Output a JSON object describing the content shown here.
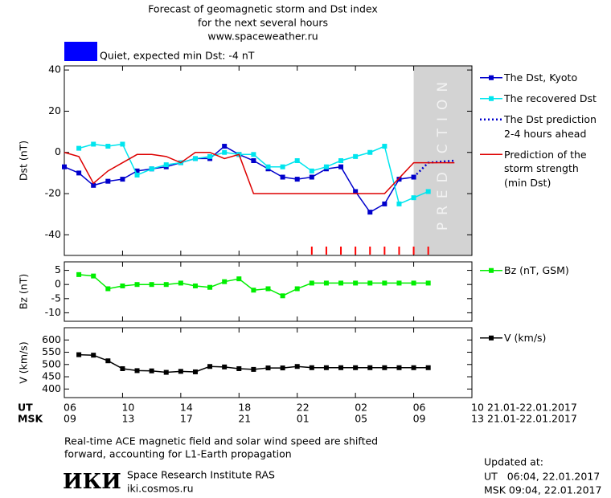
{
  "header": {
    "title_lines": [
      "Forecast of geomagnetic storm and Dst index",
      "for the next several hours",
      "www.spaceweather.ru"
    ]
  },
  "status": {
    "label": "Quiet, expected min Dst: -4 nT",
    "color": "#0000ff"
  },
  "chart_data": [
    {
      "type": "line",
      "ylabel": "Dst (nT)",
      "ylim": [
        -50,
        42
      ],
      "yticks": [
        -40,
        -20,
        0,
        20,
        40
      ],
      "grid": false,
      "shaded_region": {
        "label": "PREDICTION",
        "x": [
          24,
          28
        ],
        "color": "#d3d3d3"
      },
      "alert_marks": {
        "x": [
          17,
          18,
          19,
          20,
          21,
          22,
          23,
          24,
          25
        ],
        "color": "#ff0000"
      },
      "series": [
        {
          "name": "The Dst, Kyoto",
          "color": "#0000cc",
          "marker": "square",
          "dash": "solid",
          "x": [
            0,
            1,
            2,
            3,
            4,
            5,
            6,
            7,
            8,
            9,
            10,
            11,
            12,
            13,
            14,
            15,
            16,
            17,
            18,
            19,
            20,
            21,
            22,
            23,
            24
          ],
          "values": [
            -7,
            -10,
            -16,
            -14,
            -13,
            -9,
            -8,
            -7,
            -5,
            -3,
            -3,
            3,
            -1,
            -4,
            -8,
            -12,
            -13,
            -12,
            -8,
            -7,
            -19,
            -29,
            -25,
            -13,
            -12
          ]
        },
        {
          "name": "The recovered Dst",
          "color": "#00e5ee",
          "marker": "square",
          "dash": "solid",
          "x": [
            1,
            2,
            3,
            4,
            5,
            6,
            7,
            8,
            9,
            10,
            11,
            12,
            13,
            14,
            15,
            16,
            17,
            18,
            19,
            20,
            21,
            22,
            23,
            24,
            25
          ],
          "values": [
            2,
            4,
            3,
            4,
            -11,
            -8,
            -6,
            -5,
            -3,
            -2,
            0,
            -1,
            -1,
            -7,
            -7,
            -4,
            -9,
            -7,
            -4,
            -2,
            0,
            3,
            -25,
            -22,
            -19
          ]
        },
        {
          "name": "The Dst prediction\n2-4 hours ahead",
          "color": "#0000cc",
          "marker": "none",
          "dash": "dotted",
          "x": [
            24,
            25,
            26.8
          ],
          "values": [
            -12,
            -5,
            -4
          ]
        },
        {
          "name": "Prediction of the\nstorm strength\n(min Dst)",
          "color": "#dd0000",
          "marker": "none",
          "dash": "solid",
          "x": [
            0,
            1,
            2,
            3,
            4,
            5,
            6,
            7,
            8,
            9,
            10,
            11,
            12,
            13,
            22,
            24,
            26.8
          ],
          "values": [
            0,
            -2,
            -15,
            -9,
            -5,
            -1,
            -1,
            -2,
            -5,
            0,
            0,
            -3,
            -1,
            -20,
            -20,
            -5,
            -5
          ]
        }
      ]
    },
    {
      "type": "line",
      "ylabel": "Bz (nT)",
      "ylim": [
        -13,
        8
      ],
      "yticks": [
        -10,
        -5,
        0,
        5
      ],
      "grid": false,
      "series": [
        {
          "name": "Bz (nT, GSM)",
          "color": "#00ee00",
          "marker": "square",
          "dash": "solid",
          "x": [
            1,
            2,
            3,
            4,
            5,
            6,
            7,
            8,
            9,
            10,
            11,
            12,
            13,
            14,
            15,
            16,
            17,
            18,
            19,
            20,
            21,
            22,
            23,
            24,
            25
          ],
          "values": [
            3.5,
            3,
            -1.5,
            -0.5,
            0,
            0,
            0,
            0.5,
            -0.5,
            -1,
            1,
            2,
            -2,
            -1.5,
            -4,
            -1.5,
            0.5,
            0.5,
            0.5,
            0.5,
            0.5,
            0.5,
            0.5,
            0.5,
            0.5
          ]
        }
      ]
    },
    {
      "type": "line",
      "ylabel": "V (km/s)",
      "ylim": [
        365,
        650
      ],
      "yticks": [
        400,
        450,
        500,
        550,
        600
      ],
      "grid": false,
      "xlim": [
        0,
        28
      ],
      "xticks": [
        {
          "value": 0,
          "label": "06"
        },
        {
          "value": 4,
          "label": "10"
        },
        {
          "value": 8,
          "label": "14"
        },
        {
          "value": 12,
          "label": "18"
        },
        {
          "value": 16,
          "label": "22"
        },
        {
          "value": 20,
          "label": "02"
        },
        {
          "value": 24,
          "label": "06"
        },
        {
          "value": 28,
          "label": "10"
        }
      ],
      "xticks_msk": [
        {
          "value": 0,
          "label": "09"
        },
        {
          "value": 4,
          "label": "13"
        },
        {
          "value": 8,
          "label": "17"
        },
        {
          "value": 12,
          "label": "21"
        },
        {
          "value": 16,
          "label": "01"
        },
        {
          "value": 20,
          "label": "05"
        },
        {
          "value": 24,
          "label": "09"
        },
        {
          "value": 28,
          "label": "13"
        }
      ],
      "x_row_labels": [
        "UT",
        "MSK"
      ],
      "x_row_dates": [
        "21.01-22.01.2017",
        "21.01-22.01.2017"
      ],
      "series": [
        {
          "name": "V (km/s)",
          "color": "#000000",
          "marker": "square",
          "dash": "solid",
          "x": [
            1,
            2,
            3,
            4,
            5,
            6,
            7,
            8,
            9,
            10,
            11,
            12,
            13,
            14,
            15,
            16,
            17,
            18,
            19,
            20,
            21,
            22,
            23,
            24,
            25
          ],
          "values": [
            540,
            538,
            515,
            483,
            475,
            474,
            468,
            472,
            470,
            492,
            490,
            483,
            480,
            486,
            486,
            492,
            487,
            487,
            487,
            487,
            487,
            487,
            487,
            487,
            487
          ]
        }
      ]
    }
  ],
  "footer": {
    "note_lines": [
      "Real-time ACE magnetic field and solar wind speed are shifted",
      "forward, accounting for L1-Earth propagation"
    ],
    "logo": "ИКИ",
    "institute": "Space Research Institute RAS",
    "url": "iki.cosmos.ru",
    "updated_title": "Updated at:",
    "updated_lines": [
      "UT   06:04, 22.01.2017",
      "MSK 09:04, 22.01.2017"
    ]
  }
}
